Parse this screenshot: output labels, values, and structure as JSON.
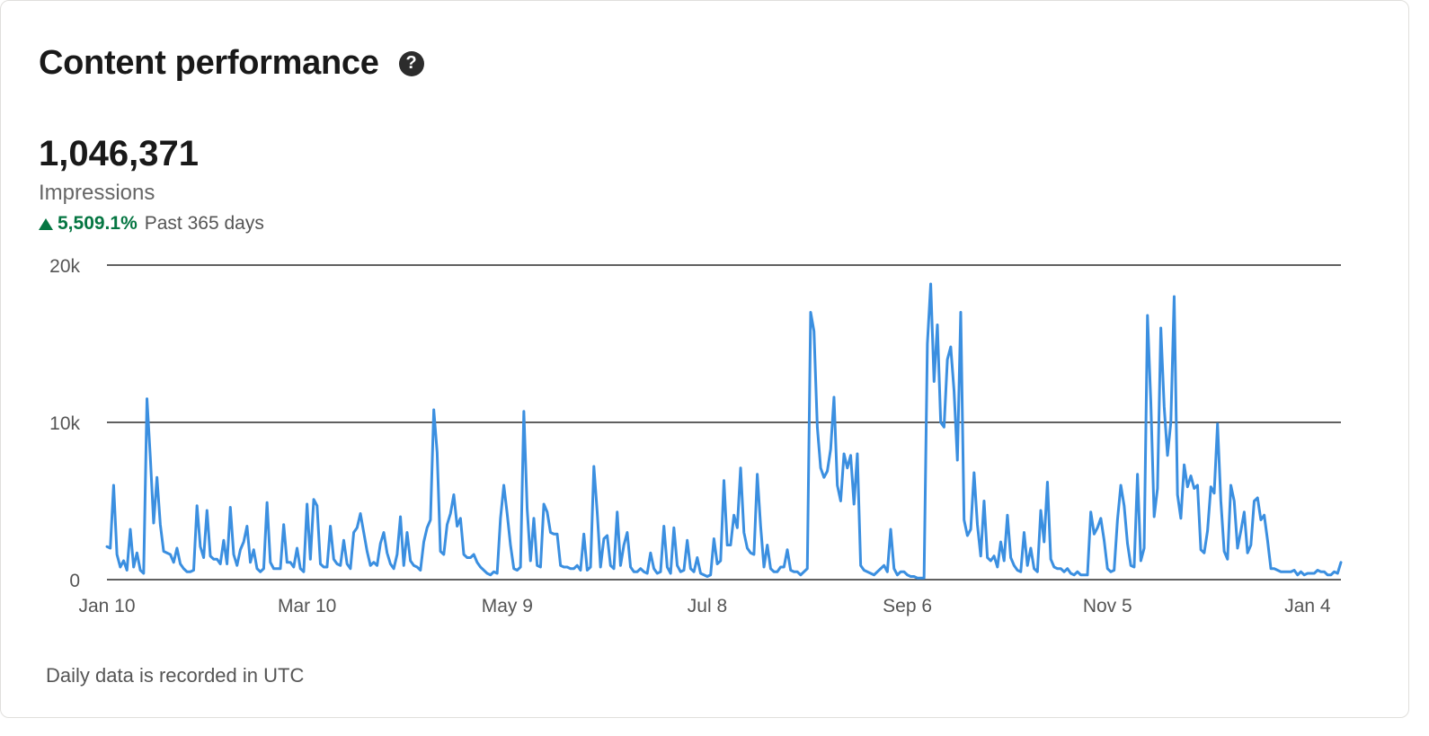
{
  "header": {
    "title": "Content performance",
    "help_icon": "question-circle-icon"
  },
  "metric": {
    "value": "1,046,371",
    "label": "Impressions",
    "change": "5,509.1%",
    "change_direction": "up",
    "period": "Past 365 days"
  },
  "footnote": "Daily data is recorded in UTC",
  "colors": {
    "line": "#3b8fe0",
    "positive": "#057642"
  },
  "chart_data": {
    "type": "line",
    "title": "",
    "xlabel": "",
    "ylabel": "",
    "ylim": [
      0,
      20000
    ],
    "y_ticks": [
      {
        "value": 0,
        "label": "0"
      },
      {
        "value": 10000,
        "label": "10k"
      },
      {
        "value": 20000,
        "label": "20k"
      }
    ],
    "x_ticks": [
      {
        "index": 0,
        "label": "Jan 10"
      },
      {
        "index": 60,
        "label": "Mar 10"
      },
      {
        "index": 120,
        "label": "May 9"
      },
      {
        "index": 180,
        "label": "Jul 8"
      },
      {
        "index": 240,
        "label": "Sep 6"
      },
      {
        "index": 300,
        "label": "Nov 5"
      },
      {
        "index": 360,
        "label": "Jan 4"
      }
    ],
    "grid": "horizontal",
    "series": [
      {
        "values": [
          2100,
          2000,
          6000,
          1600,
          800,
          1200,
          600,
          3200,
          800,
          1700,
          600,
          400,
          11500,
          7800,
          3600,
          6500,
          3500,
          1800,
          1700,
          1600,
          1100,
          2000,
          1000,
          700,
          500,
          500,
          600,
          4700,
          2100,
          1400,
          4400,
          1500,
          1300,
          1300,
          1000,
          2500,
          1000,
          4600,
          1600,
          900,
          1900,
          2400,
          3400,
          1100,
          1900,
          700,
          500,
          700,
          4900,
          1100,
          700,
          700,
          700,
          3500,
          1100,
          1100,
          800,
          2000,
          700,
          500,
          4800,
          1300,
          5100,
          4700,
          1000,
          800,
          800,
          3400,
          1300,
          1000,
          900,
          2500,
          1000,
          700,
          3000,
          3300,
          4200,
          3000,
          1800,
          900,
          1100,
          900,
          2300,
          3000,
          1700,
          1000,
          700,
          1600,
          4000,
          900,
          3000,
          1200,
          900,
          800,
          600,
          2400,
          3300,
          3800,
          10800,
          8100,
          1800,
          1600,
          3500,
          4200,
          5400,
          3400,
          3900,
          1600,
          1400,
          1400,
          1600,
          1100,
          800,
          600,
          400,
          300,
          500,
          400,
          3900,
          6000,
          4200,
          2200,
          700,
          600,
          800,
          10700,
          4500,
          1200,
          3900,
          900,
          800,
          4800,
          4300,
          3000,
          2900,
          2900,
          900,
          800,
          800,
          700,
          700,
          900,
          600,
          2900,
          600,
          800,
          7200,
          4300,
          800,
          2600,
          2800,
          900,
          700,
          4300,
          900,
          2200,
          3000,
          800,
          500,
          500,
          700,
          500,
          400,
          1700,
          700,
          400,
          500,
          3400,
          800,
          400,
          3300,
          900,
          500,
          600,
          2500,
          700,
          500,
          1400,
          400,
          300,
          200,
          300,
          2600,
          1000,
          1200,
          6300,
          2200,
          2200,
          4100,
          3300,
          7100,
          3000,
          2000,
          1700,
          1600,
          6700,
          3400,
          800,
          2200,
          700,
          500,
          500,
          800,
          800,
          1900,
          600,
          500,
          500,
          300,
          500,
          700,
          17000,
          15800,
          9700,
          7100,
          6500,
          6900,
          8300,
          11600,
          6000,
          5000,
          8000,
          7100,
          7900,
          4800,
          8000,
          900,
          600,
          500,
          400,
          300,
          500,
          700,
          900,
          500,
          3200,
          700,
          300,
          500,
          500,
          300,
          200,
          200,
          100,
          100,
          100,
          15000,
          18800,
          12600,
          16200,
          10000,
          9700,
          14000,
          14800,
          12000,
          7600,
          17000,
          3800,
          2800,
          3200,
          6800,
          3500,
          1500,
          5000,
          1400,
          1200,
          1500,
          800,
          2400,
          1200,
          4100,
          1400,
          900,
          600,
          500,
          3000,
          900,
          2000,
          700,
          500,
          4400,
          2400,
          6200,
          1300,
          800,
          700,
          700,
          500,
          700,
          400,
          300,
          500,
          300,
          300,
          300,
          4300,
          2900,
          3300,
          3900,
          2500,
          700,
          500,
          600,
          3800,
          6000,
          4700,
          2300,
          900,
          800,
          6700,
          1200,
          2000,
          16800,
          11300,
          4000,
          5800,
          16000,
          11000,
          7900,
          10000,
          18000,
          5400,
          3900,
          7300,
          5900,
          6600,
          5800,
          6000,
          1900,
          1700,
          3100,
          5900,
          5500,
          9900,
          5000,
          1800,
          1300,
          6000,
          5000,
          2000,
          3100,
          4300,
          1700,
          2200,
          5000,
          5200,
          3800,
          4100,
          2500,
          700,
          700,
          600,
          500,
          500,
          500,
          500,
          600,
          300,
          500,
          300,
          400,
          400,
          400,
          600,
          500,
          500,
          300,
          300,
          500,
          400,
          1100
        ]
      }
    ]
  }
}
